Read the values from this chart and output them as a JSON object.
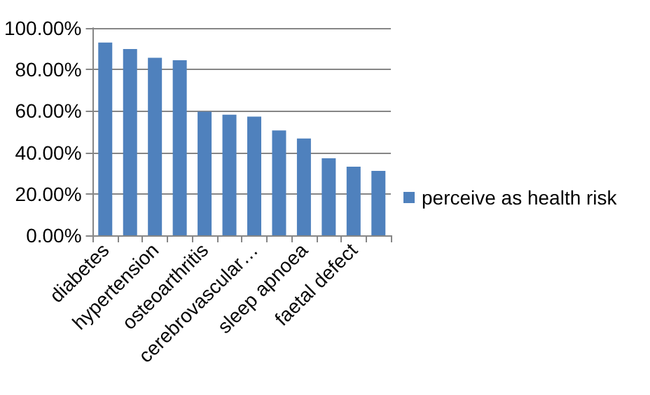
{
  "chart_data": {
    "type": "bar",
    "categories": [
      "diabetes",
      null,
      "hypertension",
      null,
      "osteoarthritis",
      null,
      "cerebrovascular…",
      null,
      "sleep apnoea",
      null,
      "faetal defect",
      null
    ],
    "series": [
      {
        "name": "perceive as health risk",
        "color": "#4f81bd",
        "values": [
          93.0,
          89.9,
          85.6,
          84.5,
          59.6,
          58.2,
          57.3,
          50.6,
          46.7,
          37.2,
          33.1,
          31.1
        ]
      }
    ],
    "ylim": [
      0,
      100
    ],
    "yticks": [
      {
        "value": 0,
        "label": "0.00%"
      },
      {
        "value": 20,
        "label": "20.00%"
      },
      {
        "value": 40,
        "label": "40.00%"
      },
      {
        "value": 60,
        "label": "60.00%"
      },
      {
        "value": 80,
        "label": "80.00%"
      },
      {
        "value": 100,
        "label": "100.00%"
      }
    ],
    "grid": "y",
    "legend": "right"
  }
}
